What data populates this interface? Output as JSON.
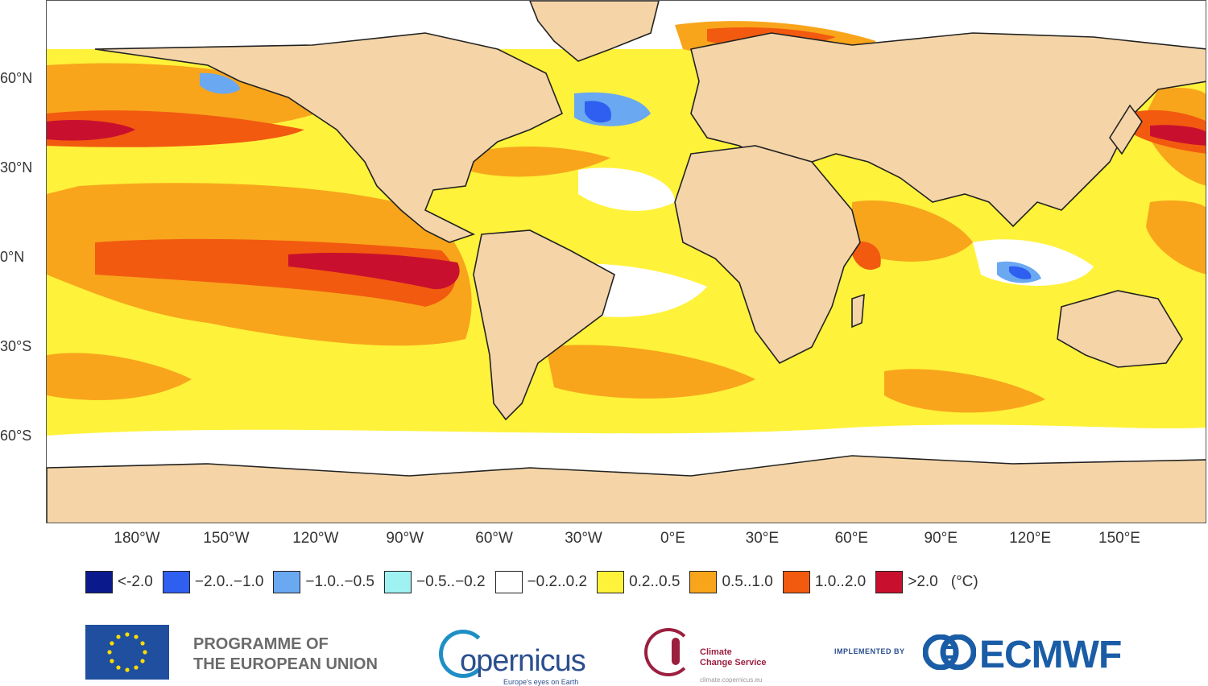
{
  "map": {
    "lat_labels": [
      {
        "text": "60°N",
        "lat": 60
      },
      {
        "text": "30°N",
        "lat": 30
      },
      {
        "text": "0°N",
        "lat": 0
      },
      {
        "text": "30°S",
        "lat": -30
      },
      {
        "text": "60°S",
        "lat": -60
      }
    ],
    "lon_labels": [
      {
        "text": "180°W",
        "lon": -180
      },
      {
        "text": "150°W",
        "lon": -150
      },
      {
        "text": "120°W",
        "lon": -120
      },
      {
        "text": "90°W",
        "lon": -90
      },
      {
        "text": "60°W",
        "lon": -60
      },
      {
        "text": "30°W",
        "lon": -30
      },
      {
        "text": "0°E",
        "lon": 0
      },
      {
        "text": "30°E",
        "lon": 30
      },
      {
        "text": "60°E",
        "lon": 60
      },
      {
        "text": "90°E",
        "lon": 90
      },
      {
        "text": "120°E",
        "lon": 120
      },
      {
        "text": "150°E",
        "lon": 150
      }
    ],
    "land_color": "#f5d5a8",
    "ocean_base_color": "#ffffff"
  },
  "legend": {
    "items": [
      {
        "label": "<-2.0",
        "color": "#0a1a8c"
      },
      {
        "label": "−2.0..−1.0",
        "color": "#2f5ff0"
      },
      {
        "label": "−1.0..−0.5",
        "color": "#6aa8f2"
      },
      {
        "label": "−0.5..−0.2",
        "color": "#9ff2f2"
      },
      {
        "label": "−0.2..0.2",
        "color": "#ffffff"
      },
      {
        "label": "0.2..0.5",
        "color": "#fff23a"
      },
      {
        "label": "0.5..1.0",
        "color": "#f8a51c"
      },
      {
        "label": "1.0..2.0",
        "color": "#f25a10"
      },
      {
        "label": ">2.0",
        "color": "#c8102e"
      }
    ],
    "unit": "(°C)"
  },
  "logos": {
    "eu_line1": "PROGRAMME OF",
    "eu_line2": "THE EUROPEAN UNION",
    "copernicus_word": "opernicus",
    "copernicus_tagline": "Europe's eyes on Earth",
    "c3s_line1": "Climate",
    "c3s_line2": "Change Service",
    "c3s_url": "climate.copernicus.eu",
    "ecmwf_implemented": "IMPLEMENTED BY",
    "ecmwf_word": "ECMWF"
  }
}
